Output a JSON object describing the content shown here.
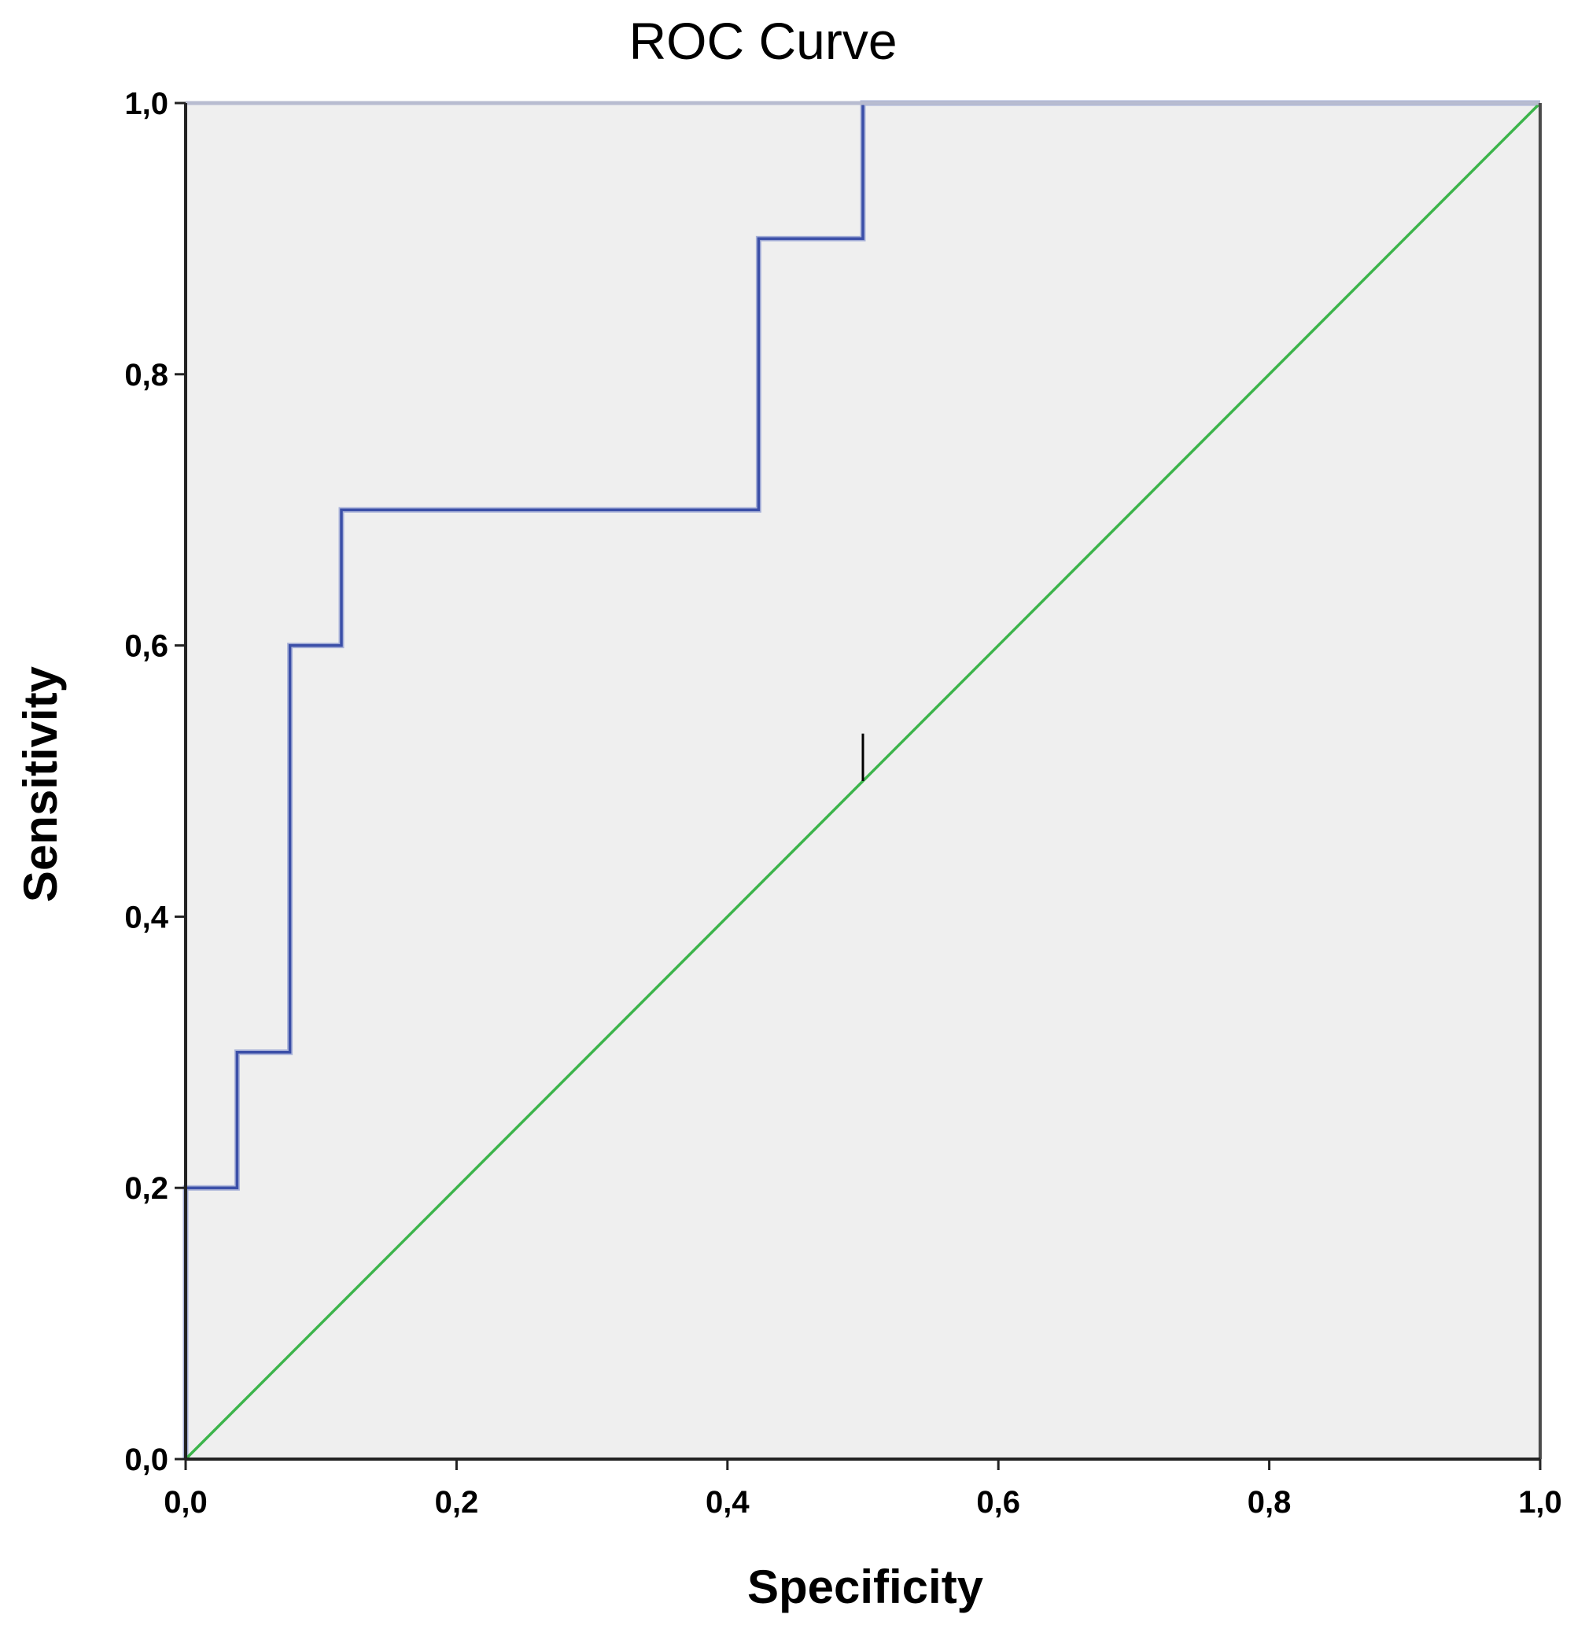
{
  "chart_data": {
    "type": "line",
    "title": "ROC Curve",
    "xlabel": "Specificity",
    "ylabel": "Sensitivity",
    "xlim": [
      0,
      1
    ],
    "ylim": [
      0,
      1
    ],
    "x_ticks": [
      "0,0",
      "0,2",
      "0,4",
      "0,6",
      "0,8",
      "1,0"
    ],
    "y_ticks": [
      "0,0",
      "0,2",
      "0,4",
      "0,6",
      "0,8",
      "1,0"
    ],
    "grid": false,
    "legend": "none",
    "background_color": "#efefef",
    "series": [
      {
        "style": "step",
        "color": "#3b4fa8",
        "points": [
          [
            0.0,
            0.0
          ],
          [
            0.0,
            0.2
          ],
          [
            0.038,
            0.2
          ],
          [
            0.038,
            0.3
          ],
          [
            0.077,
            0.3
          ],
          [
            0.077,
            0.6
          ],
          [
            0.115,
            0.6
          ],
          [
            0.115,
            0.7
          ],
          [
            0.423,
            0.7
          ],
          [
            0.423,
            0.9
          ],
          [
            0.5,
            0.9
          ],
          [
            0.5,
            1.0
          ],
          [
            1.0,
            1.0
          ]
        ]
      },
      {
        "style": "reference",
        "color": "#3cb44b",
        "points": [
          [
            0.0,
            0.0
          ],
          [
            1.0,
            1.0
          ]
        ]
      }
    ],
    "annotations": [
      {
        "type": "vertical-tick",
        "color": "#000000",
        "x": 0.5,
        "y_from": 0.5,
        "y_to": 0.535
      }
    ]
  }
}
